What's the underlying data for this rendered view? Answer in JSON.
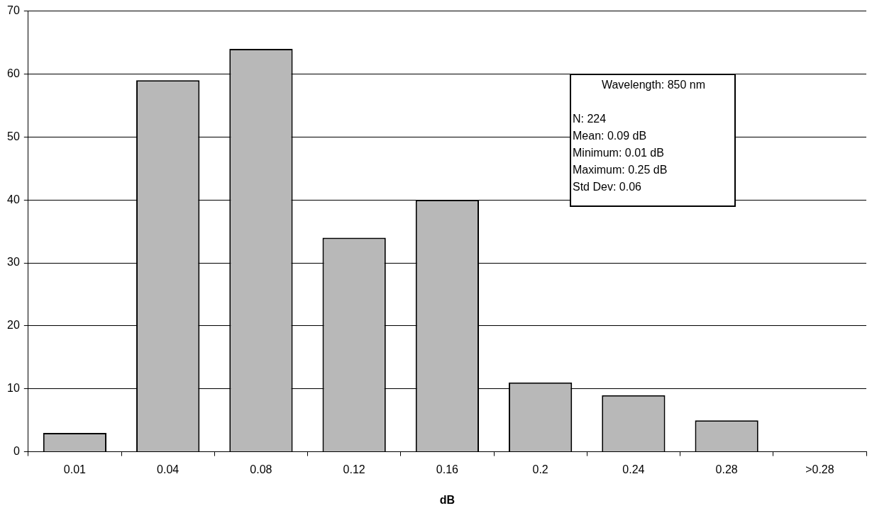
{
  "chart_data": {
    "type": "bar",
    "xlabel": "dB",
    "categories": [
      "0.01",
      "0.04",
      "0.08",
      "0.12",
      "0.16",
      "0.2",
      "0.24",
      "0.28",
      ">0.28"
    ],
    "values": [
      3,
      59,
      64,
      34,
      40,
      11,
      9,
      5,
      0
    ],
    "color": "#b8b8b8",
    "ylim": [
      0,
      70
    ],
    "yticks": [
      0,
      10,
      20,
      30,
      40,
      50,
      60,
      70
    ],
    "grid": "y",
    "annotations": [
      "Wavelength:  850 nm",
      "N:  224",
      "Mean:  0.09 dB",
      "Minimum:  0.01 dB",
      "Maximum:  0.25 dB",
      "Std Dev: 0.06"
    ]
  }
}
